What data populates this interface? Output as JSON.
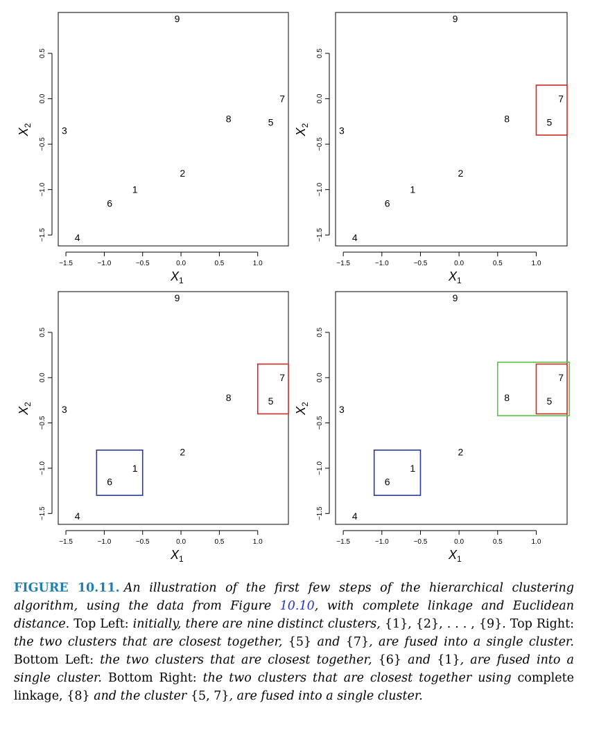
{
  "chart_data": [
    {
      "type": "scatter",
      "xlabel": "X1",
      "ylabel": "X2",
      "xticks": [
        -1.5,
        -1.0,
        -0.5,
        0.0,
        0.5,
        1.0
      ],
      "yticks": [
        -1.5,
        -1.0,
        -0.5,
        0.0,
        0.5
      ],
      "xlim": [
        -1.6,
        1.4
      ],
      "ylim": [
        -1.62,
        0.95
      ],
      "points": [
        {
          "label": "1",
          "x": -0.6,
          "y": -1.0
        },
        {
          "label": "2",
          "x": 0.02,
          "y": -0.82
        },
        {
          "label": "3",
          "x": -1.52,
          "y": -0.35
        },
        {
          "label": "4",
          "x": -1.35,
          "y": -1.53
        },
        {
          "label": "5",
          "x": 1.17,
          "y": -0.26
        },
        {
          "label": "6",
          "x": -0.93,
          "y": -1.15
        },
        {
          "label": "7",
          "x": 1.32,
          "y": 0.0
        },
        {
          "label": "8",
          "x": 0.62,
          "y": -0.22
        },
        {
          "label": "9",
          "x": -0.05,
          "y": 0.88
        }
      ],
      "boxes": []
    },
    {
      "type": "scatter",
      "xlabel": "X1",
      "ylabel": "X2",
      "xticks": [
        -1.5,
        -1.0,
        -0.5,
        0.0,
        0.5,
        1.0
      ],
      "yticks": [
        -1.5,
        -1.0,
        -0.5,
        0.0,
        0.5
      ],
      "xlim": [
        -1.6,
        1.4
      ],
      "ylim": [
        -1.62,
        0.95
      ],
      "points": [
        {
          "label": "1",
          "x": -0.6,
          "y": -1.0
        },
        {
          "label": "2",
          "x": 0.02,
          "y": -0.82
        },
        {
          "label": "3",
          "x": -1.52,
          "y": -0.35
        },
        {
          "label": "4",
          "x": -1.35,
          "y": -1.53
        },
        {
          "label": "5",
          "x": 1.17,
          "y": -0.26
        },
        {
          "label": "6",
          "x": -0.93,
          "y": -1.15
        },
        {
          "label": "7",
          "x": 1.32,
          "y": 0.0
        },
        {
          "label": "8",
          "x": 0.62,
          "y": -0.22
        },
        {
          "label": "9",
          "x": -0.05,
          "y": 0.88
        }
      ],
      "boxes": [
        {
          "color": "#cc2a1f",
          "x0": 1.0,
          "x1": 1.4,
          "y0": -0.4,
          "y1": 0.15
        }
      ]
    },
    {
      "type": "scatter",
      "xlabel": "X1",
      "ylabel": "X2",
      "xticks": [
        -1.5,
        -1.0,
        -0.5,
        0.0,
        0.5,
        1.0
      ],
      "yticks": [
        -1.5,
        -1.0,
        -0.5,
        0.0,
        0.5
      ],
      "xlim": [
        -1.6,
        1.4
      ],
      "ylim": [
        -1.62,
        0.95
      ],
      "points": [
        {
          "label": "1",
          "x": -0.6,
          "y": -1.0
        },
        {
          "label": "2",
          "x": 0.02,
          "y": -0.82
        },
        {
          "label": "3",
          "x": -1.52,
          "y": -0.35
        },
        {
          "label": "4",
          "x": -1.35,
          "y": -1.53
        },
        {
          "label": "5",
          "x": 1.17,
          "y": -0.26
        },
        {
          "label": "6",
          "x": -0.93,
          "y": -1.15
        },
        {
          "label": "7",
          "x": 1.32,
          "y": 0.0
        },
        {
          "label": "8",
          "x": 0.62,
          "y": -0.22
        },
        {
          "label": "9",
          "x": -0.05,
          "y": 0.88
        }
      ],
      "boxes": [
        {
          "color": "#cc2a1f",
          "x0": 1.0,
          "x1": 1.4,
          "y0": -0.4,
          "y1": 0.15
        },
        {
          "color": "#2a3a9c",
          "x0": -1.1,
          "x1": -0.5,
          "y0": -1.3,
          "y1": -0.8
        }
      ]
    },
    {
      "type": "scatter",
      "xlabel": "X1",
      "ylabel": "X2",
      "xticks": [
        -1.5,
        -1.0,
        -0.5,
        0.0,
        0.5,
        1.0
      ],
      "yticks": [
        -1.5,
        -1.0,
        -0.5,
        0.0,
        0.5
      ],
      "xlim": [
        -1.6,
        1.4
      ],
      "ylim": [
        -1.62,
        0.95
      ],
      "points": [
        {
          "label": "1",
          "x": -0.6,
          "y": -1.0
        },
        {
          "label": "2",
          "x": 0.02,
          "y": -0.82
        },
        {
          "label": "3",
          "x": -1.52,
          "y": -0.35
        },
        {
          "label": "4",
          "x": -1.35,
          "y": -1.53
        },
        {
          "label": "5",
          "x": 1.17,
          "y": -0.26
        },
        {
          "label": "6",
          "x": -0.93,
          "y": -1.15
        },
        {
          "label": "7",
          "x": 1.32,
          "y": 0.0
        },
        {
          "label": "8",
          "x": 0.62,
          "y": -0.22
        },
        {
          "label": "9",
          "x": -0.05,
          "y": 0.88
        }
      ],
      "boxes": [
        {
          "color": "#5cc24a",
          "x0": 0.5,
          "x1": 1.43,
          "y0": -0.42,
          "y1": 0.17
        },
        {
          "color": "#cc2a1f",
          "x0": 1.0,
          "x1": 1.4,
          "y0": -0.4,
          "y1": 0.15
        },
        {
          "color": "#2a3a9c",
          "x0": -1.1,
          "x1": -0.5,
          "y0": -1.3,
          "y1": -0.8
        }
      ]
    }
  ],
  "caption": {
    "label": "FIGURE 10.11.",
    "p1": "An illustration of the first few steps of the hierarchical clustering algorithm, using the data from Figure",
    "ref": "10.10",
    "p2": ", with complete linkage and Euclidean distance.",
    "s1": "Top Left:",
    "p3": "initially, there are nine distinct clusters,",
    "m1": "{1}, {2}, . . . , {9}.",
    "s2": "Top Right:",
    "p4": "the two clusters that are closest together,",
    "m2": "{5}",
    "p5": "and",
    "m3": "{7}",
    "p6": ", are fused into a single cluster.",
    "s3": "Bottom Left:",
    "p7": "the two clusters that are closest together,",
    "m4": "{6}",
    "p8": "and",
    "m5": "{1}",
    "p9": ", are fused into a single cluster.",
    "s4": "Bottom Right:",
    "p10": "the two clusters that are closest together using",
    "s5": "complete linkage,",
    "m6": "{8}",
    "p11": "and the cluster",
    "m7": "{5, 7}",
    "p12": ", are fused into a single cluster."
  }
}
